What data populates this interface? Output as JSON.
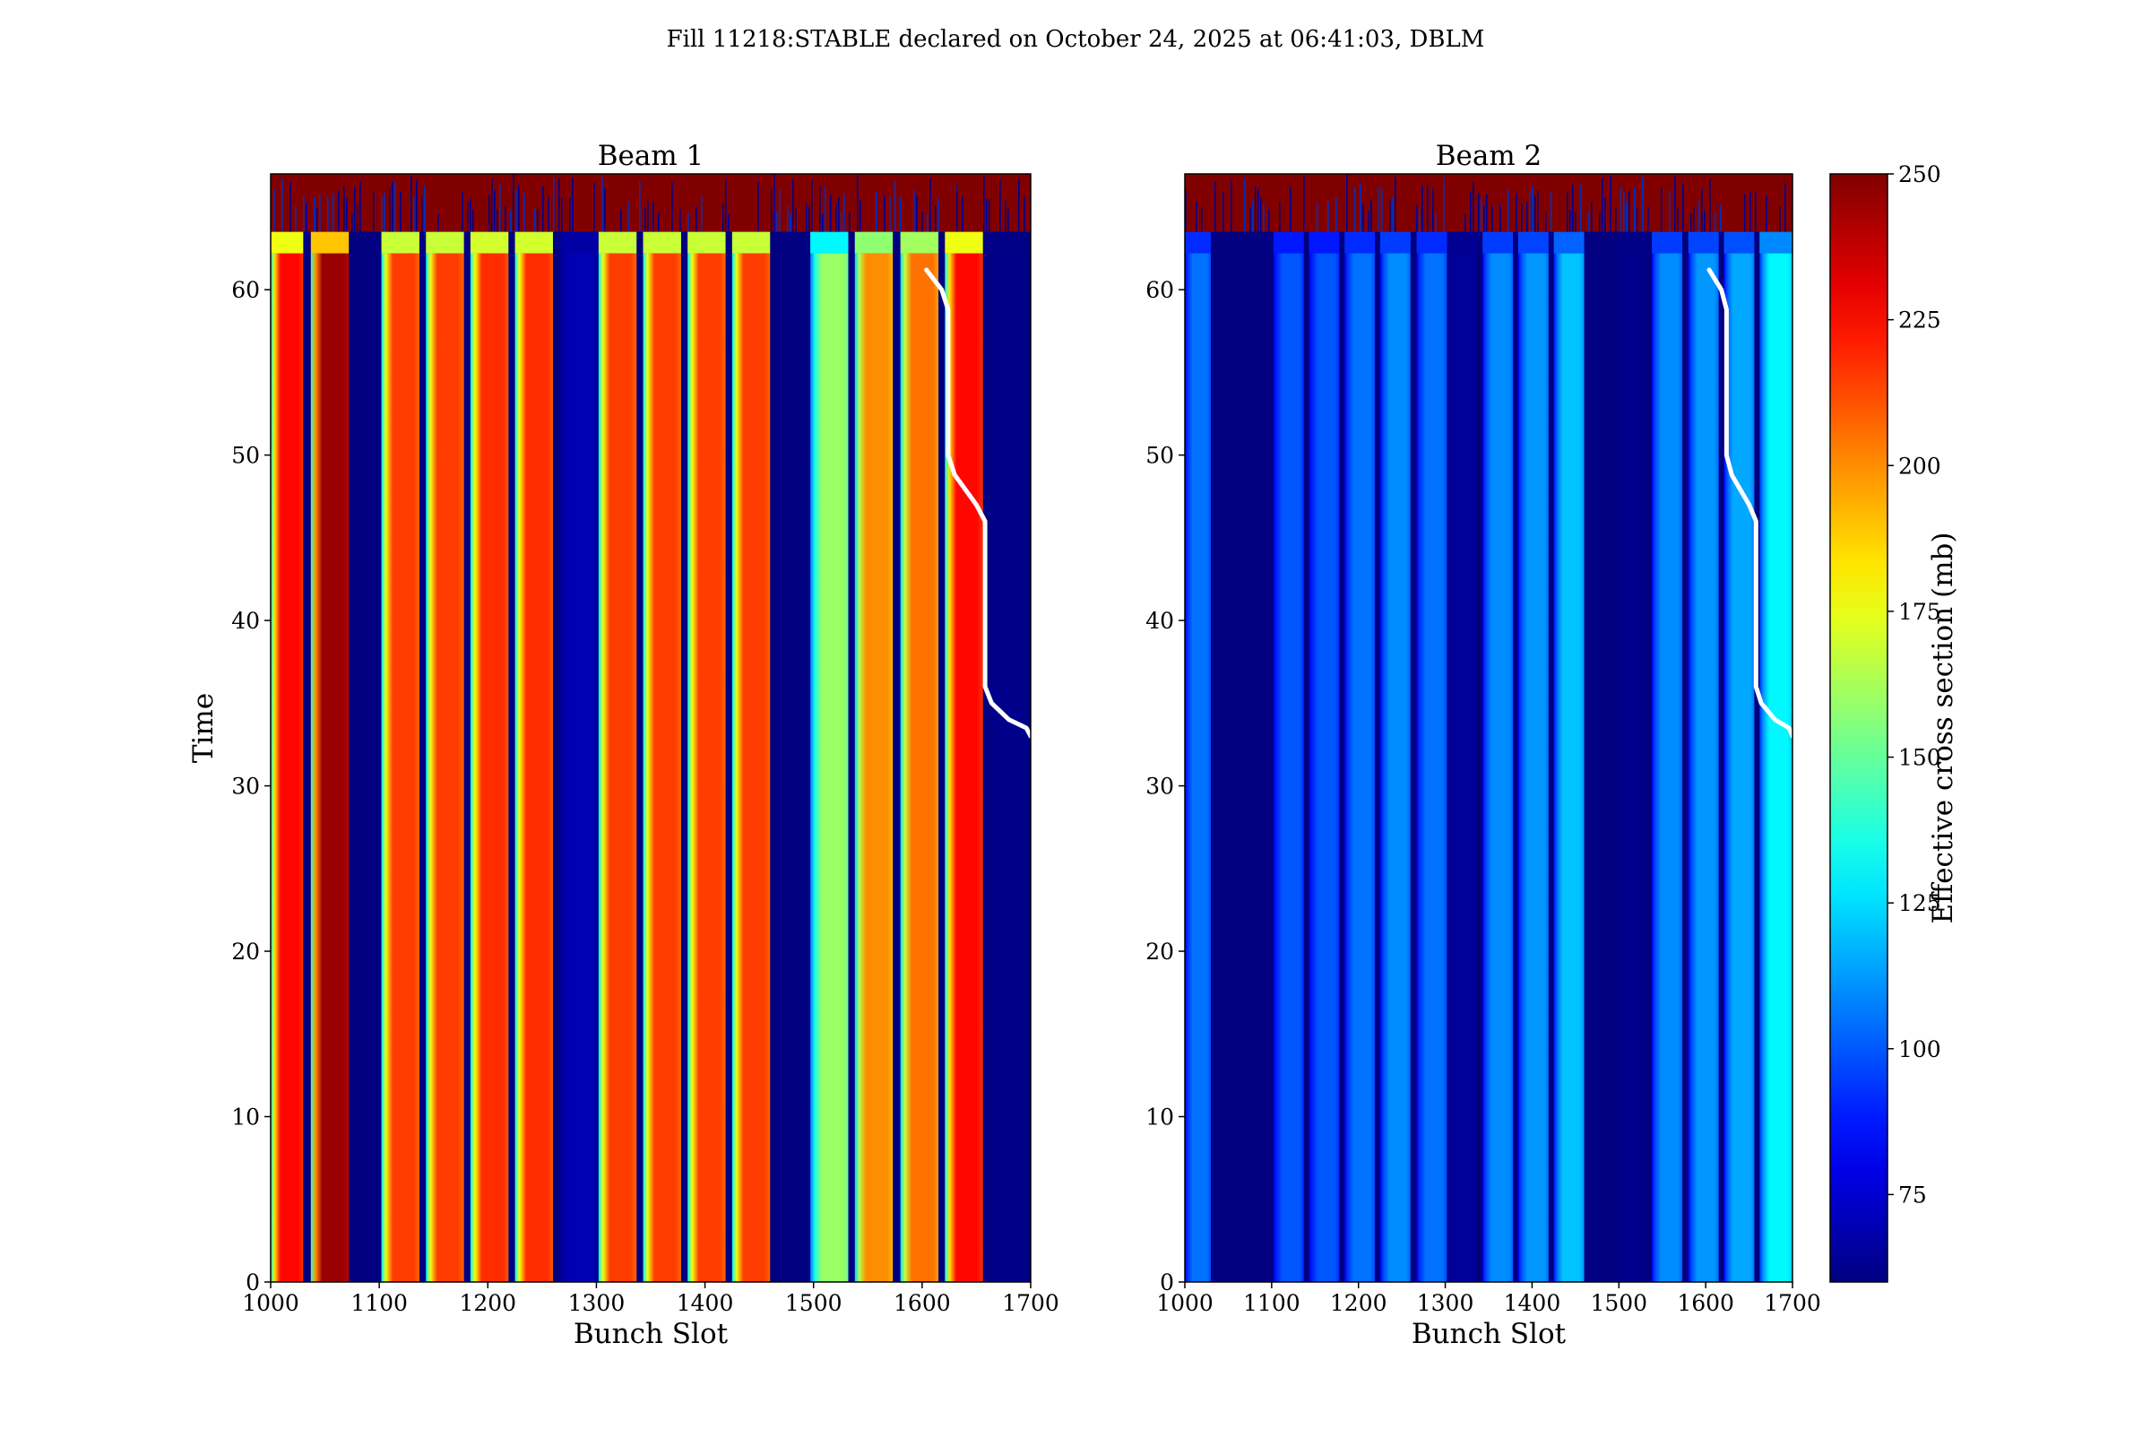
{
  "figure": {
    "title": "Fill 11218:STABLE declared on October 24, 2025 at 06:41:03, DBLM"
  },
  "colors": {
    "colormap": "jet",
    "overlay_line": "#ffffff",
    "axes": "#000000"
  },
  "chart_data": [
    {
      "type": "heatmap",
      "title": "Beam 1",
      "xlabel": "Bunch Slot",
      "ylabel": "Time",
      "xlim": [
        1000,
        1700
      ],
      "ylim": [
        0,
        67
      ],
      "xticks": [
        1000,
        1100,
        1200,
        1300,
        1400,
        1500,
        1600,
        1700
      ],
      "yticks": [
        0,
        10,
        20,
        30,
        40,
        50,
        60
      ],
      "noise_region_ymin": 63.5,
      "trains": [
        {
          "x0": 1000,
          "x1": 1030,
          "v": 225
        },
        {
          "x0": 1037,
          "x1": 1072,
          "v": 245
        },
        {
          "x0": 1102,
          "x1": 1137,
          "v": 215
        },
        {
          "x0": 1143,
          "x1": 1178,
          "v": 215
        },
        {
          "x0": 1184,
          "x1": 1219,
          "v": 218
        },
        {
          "x0": 1225,
          "x1": 1260,
          "v": 218
        },
        {
          "x0": 1267,
          "x1": 1302,
          "v": 70
        },
        {
          "x0": 1302,
          "x1": 1337,
          "v": 215
        },
        {
          "x0": 1343,
          "x1": 1378,
          "v": 215
        },
        {
          "x0": 1384,
          "x1": 1419,
          "v": 215
        },
        {
          "x0": 1425,
          "x1": 1460,
          "v": 215
        },
        {
          "x0": 1497,
          "x1": 1532,
          "v": 160
        },
        {
          "x0": 1538,
          "x1": 1573,
          "v": 200
        },
        {
          "x0": 1580,
          "x1": 1615,
          "v": 205
        },
        {
          "x0": 1621,
          "x1": 1656,
          "v": 225
        },
        {
          "x0": 1662,
          "x1": 1700,
          "v": 62
        }
      ],
      "overlay_line": {
        "x": [
          1604,
          1618,
          1624,
          1624,
          1630,
          1650,
          1658,
          1658,
          1664,
          1680,
          1696,
          1700
        ],
        "y": [
          61.2,
          60,
          58.8,
          50,
          48.8,
          47,
          46,
          36,
          35,
          34,
          33.5,
          33
        ]
      }
    },
    {
      "type": "heatmap",
      "title": "Beam 2",
      "xlabel": "Bunch Slot",
      "ylabel": "",
      "xlim": [
        1000,
        1700
      ],
      "ylim": [
        0,
        67
      ],
      "xticks": [
        1000,
        1100,
        1200,
        1300,
        1400,
        1500,
        1600,
        1700
      ],
      "yticks": [
        0,
        10,
        20,
        30,
        40,
        50,
        60
      ],
      "noise_region_ymin": 63.5,
      "trains": [
        {
          "x0": 1000,
          "x1": 1030,
          "v": 105
        },
        {
          "x0": 1037,
          "x1": 1072,
          "v": 60
        },
        {
          "x0": 1102,
          "x1": 1137,
          "v": 100
        },
        {
          "x0": 1143,
          "x1": 1178,
          "v": 100
        },
        {
          "x0": 1184,
          "x1": 1219,
          "v": 105
        },
        {
          "x0": 1225,
          "x1": 1260,
          "v": 110
        },
        {
          "x0": 1267,
          "x1": 1302,
          "v": 105
        },
        {
          "x0": 1302,
          "x1": 1337,
          "v": 65
        },
        {
          "x0": 1343,
          "x1": 1378,
          "v": 110
        },
        {
          "x0": 1384,
          "x1": 1419,
          "v": 112
        },
        {
          "x0": 1425,
          "x1": 1460,
          "v": 120
        },
        {
          "x0": 1497,
          "x1": 1532,
          "v": 62
        },
        {
          "x0": 1538,
          "x1": 1573,
          "v": 110
        },
        {
          "x0": 1580,
          "x1": 1615,
          "v": 112
        },
        {
          "x0": 1621,
          "x1": 1656,
          "v": 115
        },
        {
          "x0": 1662,
          "x1": 1700,
          "v": 130
        }
      ],
      "overlay_line": {
        "x": [
          1604,
          1618,
          1624,
          1624,
          1630,
          1650,
          1658,
          1658,
          1664,
          1680,
          1696,
          1700
        ],
        "y": [
          61.2,
          60,
          58.8,
          50,
          48.8,
          47,
          46,
          36,
          35,
          34,
          33.5,
          33
        ]
      }
    }
  ],
  "colorbar": {
    "label": "Effective cross section (mb)",
    "vmin": 60,
    "vmax": 250,
    "ticks": [
      75,
      100,
      125,
      150,
      175,
      200,
      225,
      250
    ]
  }
}
